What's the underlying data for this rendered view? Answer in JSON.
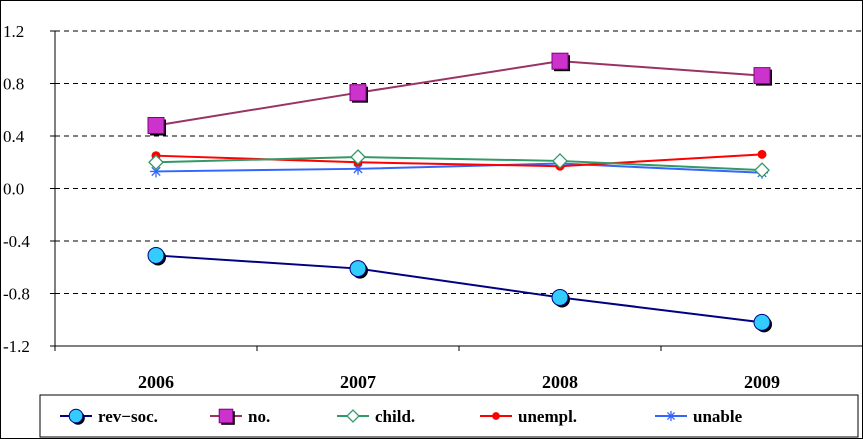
{
  "chart_data": {
    "type": "line",
    "categories": [
      "2006",
      "2007",
      "2008",
      "2009"
    ],
    "ylim": [
      -1.2,
      1.2
    ],
    "yticks": [
      "1.2",
      "0.8",
      "0.4",
      "0.0",
      "-0.4",
      "-0.8",
      "-1.2"
    ],
    "grid": "horizontal dashed",
    "legend_position": "bottom",
    "series": [
      {
        "name": "rev−soc.",
        "values": [
          -0.51,
          -0.61,
          -0.83,
          -1.02
        ],
        "color": "#000080",
        "marker": "circle",
        "marker_color": "#33ccff"
      },
      {
        "name": "no.",
        "values": [
          0.48,
          0.73,
          0.97,
          0.86
        ],
        "color": "#993366",
        "marker": "square",
        "marker_color": "#cc33cc"
      },
      {
        "name": "child.",
        "values": [
          0.2,
          0.24,
          0.21,
          0.14
        ],
        "color": "#339966",
        "marker": "diamond",
        "marker_color": "#ffffff"
      },
      {
        "name": "unempl.",
        "values": [
          0.25,
          0.2,
          0.17,
          0.26
        ],
        "color": "#ff0000",
        "marker": "dot",
        "marker_color": "#ff0000"
      },
      {
        "name": "unable",
        "values": [
          0.13,
          0.15,
          0.19,
          0.12
        ],
        "color": "#3366ff",
        "marker": "asterisk",
        "marker_color": "#3366ff"
      }
    ]
  }
}
